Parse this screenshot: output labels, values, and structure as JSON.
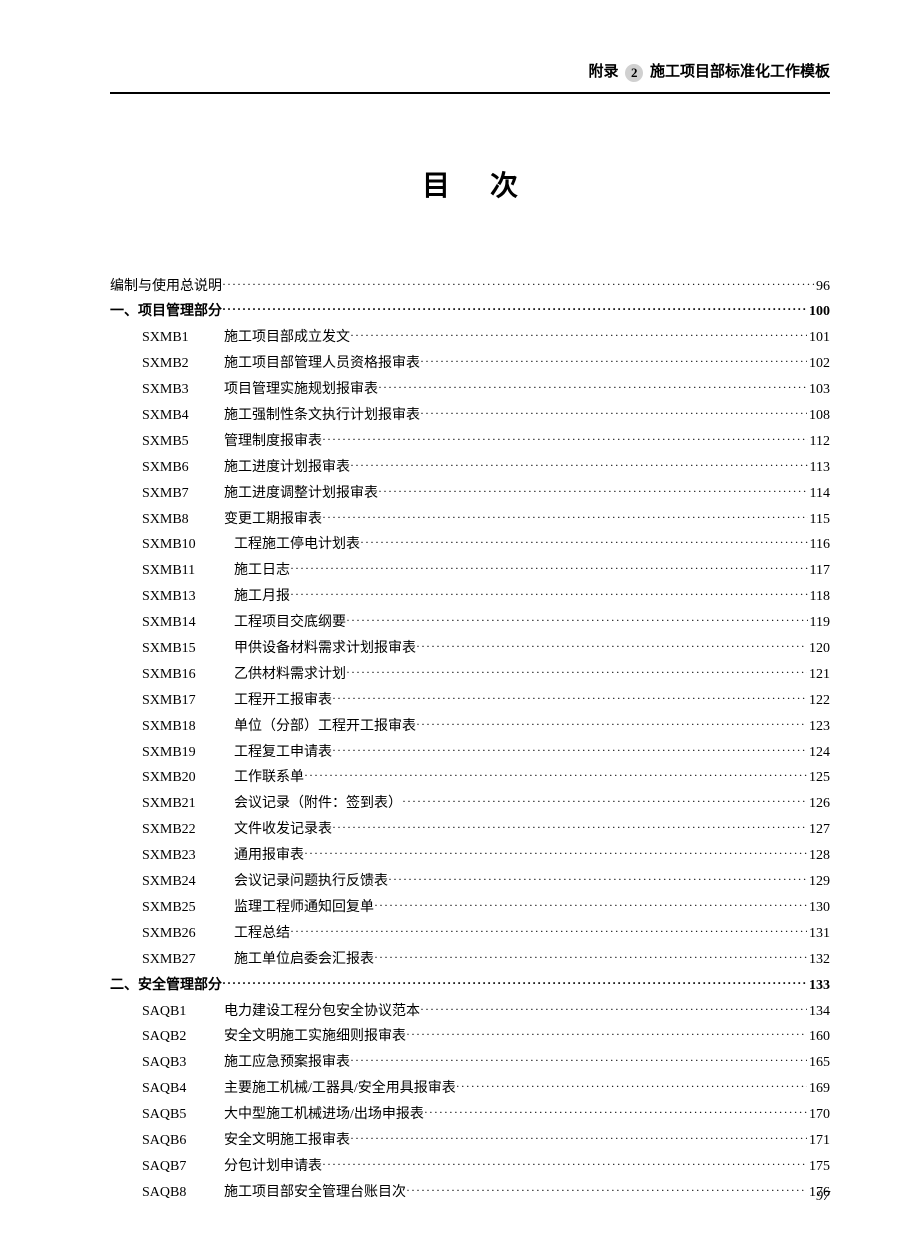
{
  "header": {
    "prefix": "附录",
    "num": "2",
    "title": "施工项目部标准化工作模板"
  },
  "main_title": "目次",
  "footer_page": "97",
  "entries": [
    {
      "level": 0,
      "code": "",
      "label": "编制与使用总说明",
      "page": "96",
      "bold": false
    },
    {
      "level": 0,
      "code": "",
      "label": "一、项目管理部分",
      "page": "100",
      "bold": true
    },
    {
      "level": 1,
      "code": "SXMB1",
      "label": "施工项目部成立发文",
      "page": "101"
    },
    {
      "level": 1,
      "code": "SXMB2",
      "label": "施工项目部管理人员资格报审表",
      "page": "102"
    },
    {
      "level": 1,
      "code": "SXMB3",
      "label": "项目管理实施规划报审表",
      "page": "103"
    },
    {
      "level": 1,
      "code": "SXMB4",
      "label": "施工强制性条文执行计划报审表",
      "page": "108"
    },
    {
      "level": 1,
      "code": "SXMB5",
      "label": "管理制度报审表",
      "page": "112"
    },
    {
      "level": 1,
      "code": "SXMB6",
      "label": "施工进度计划报审表",
      "page": "113"
    },
    {
      "level": 1,
      "code": "SXMB7",
      "label": "施工进度调整计划报审表",
      "page": "114"
    },
    {
      "level": 1,
      "code": "SXMB8",
      "label": "变更工期报审表",
      "page": "115"
    },
    {
      "level": 1,
      "code": "SXMB10",
      "label": "工程施工停电计划表",
      "page": "116",
      "wide": true
    },
    {
      "level": 1,
      "code": "SXMB11",
      "label": "施工日志",
      "page": "117",
      "wide": true
    },
    {
      "level": 1,
      "code": "SXMB13",
      "label": "施工月报",
      "page": "118",
      "wide": true
    },
    {
      "level": 1,
      "code": "SXMB14",
      "label": "工程项目交底纲要",
      "page": "119",
      "wide": true
    },
    {
      "level": 1,
      "code": "SXMB15",
      "label": "甲供设备材料需求计划报审表",
      "page": "120",
      "wide": true
    },
    {
      "level": 1,
      "code": "SXMB16",
      "label": "乙供材料需求计划",
      "page": "121",
      "wide": true
    },
    {
      "level": 1,
      "code": "SXMB17",
      "label": "工程开工报审表",
      "page": "122",
      "wide": true
    },
    {
      "level": 1,
      "code": "SXMB18",
      "label": "单位（分部）工程开工报审表",
      "page": "123",
      "wide": true
    },
    {
      "level": 1,
      "code": "SXMB19",
      "label": "工程复工申请表",
      "page": "124",
      "wide": true
    },
    {
      "level": 1,
      "code": "SXMB20",
      "label": "工作联系单",
      "page": "125",
      "wide": true
    },
    {
      "level": 1,
      "code": "SXMB21",
      "label": "会议记录（附件：签到表）",
      "page": "126",
      "wide": true
    },
    {
      "level": 1,
      "code": "SXMB22",
      "label": "文件收发记录表",
      "page": "127",
      "wide": true
    },
    {
      "level": 1,
      "code": "SXMB23",
      "label": "通用报审表",
      "page": "128",
      "wide": true
    },
    {
      "level": 1,
      "code": "SXMB24",
      "label": "会议记录问题执行反馈表",
      "page": "129",
      "wide": true
    },
    {
      "level": 1,
      "code": "SXMB25",
      "label": "监理工程师通知回复单",
      "page": "130",
      "wide": true
    },
    {
      "level": 1,
      "code": "SXMB26",
      "label": "工程总结",
      "page": "131",
      "wide": true
    },
    {
      "level": 1,
      "code": "SXMB27",
      "label": "施工单位启委会汇报表",
      "page": "132",
      "wide": true
    },
    {
      "level": 0,
      "code": "",
      "label": "二、安全管理部分",
      "page": "133",
      "bold": true
    },
    {
      "level": 1,
      "code": "SAQB1",
      "label": "电力建设工程分包安全协议范本",
      "page": "134"
    },
    {
      "level": 1,
      "code": "SAQB2",
      "label": "安全文明施工实施细则报审表",
      "page": "160"
    },
    {
      "level": 1,
      "code": "SAQB3",
      "label": "施工应急预案报审表",
      "page": "165"
    },
    {
      "level": 1,
      "code": "SAQB4",
      "label": "主要施工机械/工器具/安全用具报审表",
      "page": "169"
    },
    {
      "level": 1,
      "code": "SAQB5",
      "label": "大中型施工机械进场/出场申报表",
      "page": "170"
    },
    {
      "level": 1,
      "code": "SAQB6",
      "label": "安全文明施工报审表",
      "page": "171"
    },
    {
      "level": 1,
      "code": "SAQB7",
      "label": "分包计划申请表",
      "page": "175"
    },
    {
      "level": 1,
      "code": "SAQB8",
      "label": "施工项目部安全管理台账目次",
      "page": "176"
    }
  ]
}
